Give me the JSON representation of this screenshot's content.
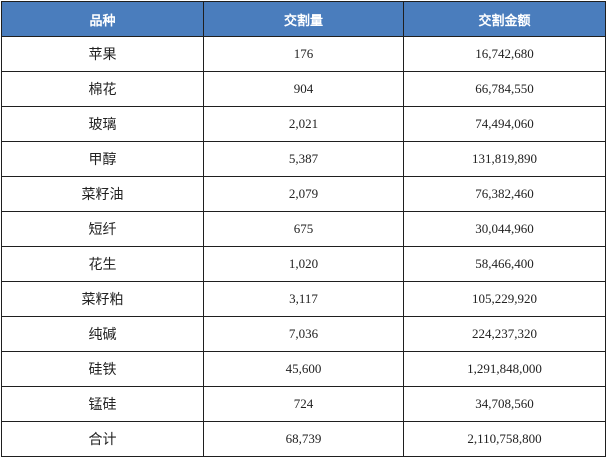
{
  "colors": {
    "header_bg": "#4a7dbd",
    "header_text": "#ffffff",
    "border": "#1f1f1f"
  },
  "table": {
    "headers": [
      "品种",
      "交割量",
      "交割金额"
    ],
    "rows": [
      [
        "苹果",
        "176",
        "16,742,680"
      ],
      [
        "棉花",
        "904",
        "66,784,550"
      ],
      [
        "玻璃",
        "2,021",
        "74,494,060"
      ],
      [
        "甲醇",
        "5,387",
        "131,819,890"
      ],
      [
        "菜籽油",
        "2,079",
        "76,382,460"
      ],
      [
        "短纤",
        "675",
        "30,044,960"
      ],
      [
        "花生",
        "1,020",
        "58,466,400"
      ],
      [
        "菜籽粕",
        "3,117",
        "105,229,920"
      ],
      [
        "纯碱",
        "7,036",
        "224,237,320"
      ],
      [
        "硅铁",
        "45,600",
        "1,291,848,000"
      ],
      [
        "锰硅",
        "724",
        "34,708,560"
      ],
      [
        "合计",
        "68,739",
        "2,110,758,800"
      ]
    ]
  }
}
